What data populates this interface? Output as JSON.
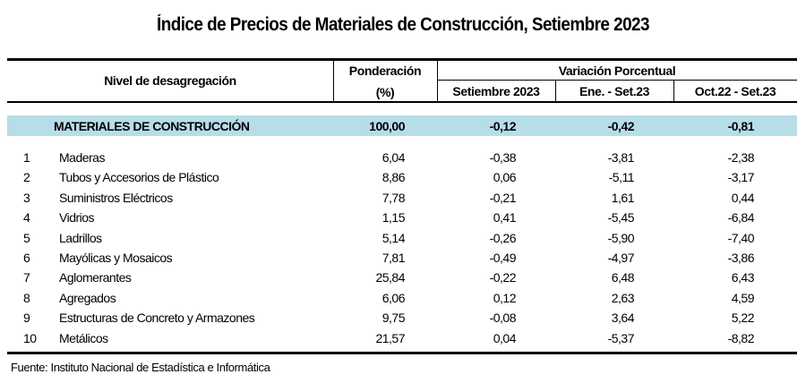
{
  "title": "Índice de Precios de Materiales de Construcción, Setiembre 2023",
  "header": {
    "nivel": "Nivel de desagregación",
    "ponderacion": "Ponderación",
    "ponderacion_unit": "(%)",
    "variacion": "Variación Porcentual",
    "col1": "Setiembre 2023",
    "col2": "Ene. - Set.23",
    "col3": "Oct.22 - Set.23"
  },
  "total": {
    "name": "MATERIALES DE CONSTRUCCIÓN",
    "ponderacion": "100,00",
    "v1": "-0,12",
    "v2": "-0,42",
    "v3": "-0,81"
  },
  "rows": [
    {
      "n": "1",
      "name": "Maderas",
      "p": "6,04",
      "v1": "-0,38",
      "v2": "-3,81",
      "v3": "-2,38"
    },
    {
      "n": "2",
      "name": "Tubos y Accesorios de Plástico",
      "p": "8,86",
      "v1": "0,06",
      "v2": "-5,11",
      "v3": "-3,17"
    },
    {
      "n": "3",
      "name": "Suministros Eléctricos",
      "p": "7,78",
      "v1": "-0,21",
      "v2": "1,61",
      "v3": "0,44"
    },
    {
      "n": "4",
      "name": "Vidrios",
      "p": "1,15",
      "v1": "0,41",
      "v2": "-5,45",
      "v3": "-6,84"
    },
    {
      "n": "5",
      "name": "Ladrillos",
      "p": "5,14",
      "v1": "-0,26",
      "v2": "-5,90",
      "v3": "-7,40"
    },
    {
      "n": "6",
      "name": "Mayólicas y Mosaicos",
      "p": "7,81",
      "v1": "-0,49",
      "v2": "-4,97",
      "v3": "-3,86"
    },
    {
      "n": "7",
      "name": "Aglomerantes",
      "p": "25,84",
      "v1": "-0,22",
      "v2": "6,48",
      "v3": "6,43"
    },
    {
      "n": "8",
      "name": "Agregados",
      "p": "6,06",
      "v1": "0,12",
      "v2": "2,63",
      "v3": "4,59"
    },
    {
      "n": "9",
      "name": "Estructuras de Concreto y Armazones",
      "p": "9,75",
      "v1": "-0,08",
      "v2": "3,64",
      "v3": "5,22"
    },
    {
      "n": "10",
      "name": "Metálicos",
      "p": "21,57",
      "v1": "0,04",
      "v2": "-5,37",
      "v3": "-8,82"
    }
  ],
  "source": "Fuente: Instituto Nacional de Estadística e Informática"
}
